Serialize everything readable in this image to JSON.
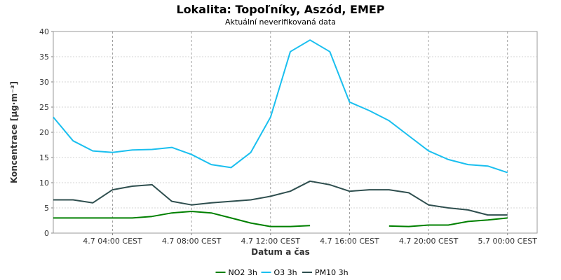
{
  "chart_data": {
    "type": "line",
    "title": "Lokalita: Topoľníky, Aszód, EMEP",
    "subtitle": "Aktuální neverifikovaná data",
    "xlabel": "Datum a čas",
    "ylabel": "Koncentrace [µg·m⁻³]",
    "ylim": [
      0,
      40
    ],
    "yticks": [
      0,
      5,
      10,
      15,
      20,
      25,
      30,
      35,
      40
    ],
    "xlim": [
      "4.7 01:00",
      "5.7 01:30"
    ],
    "xtick_labels": [
      "4.7 04:00 CEST",
      "4.7 08:00 CEST",
      "4.7 12:00 CEST",
      "4.7 16:00 CEST",
      "4.7 20:00 CEST",
      "5.7 00:00 CEST"
    ],
    "grid": true,
    "legend_position": "bottom",
    "x": [
      "4.7 01:00",
      "4.7 02:00",
      "4.7 03:00",
      "4.7 04:00",
      "4.7 05:00",
      "4.7 06:00",
      "4.7 07:00",
      "4.7 08:00",
      "4.7 09:00",
      "4.7 10:00",
      "4.7 11:00",
      "4.7 12:00",
      "4.7 13:00",
      "4.7 14:00",
      "4.7 15:00",
      "4.7 16:00",
      "4.7 17:00",
      "4.7 18:00",
      "4.7 19:00",
      "4.7 20:00",
      "4.7 21:00",
      "4.7 22:00",
      "4.7 23:00",
      "5.7 00:00"
    ],
    "series": [
      {
        "name": "NO2 3h",
        "color": "#008000",
        "values": [
          3.0,
          3.0,
          3.0,
          3.0,
          3.0,
          3.3,
          4.0,
          4.3,
          4.0,
          3.0,
          2.0,
          1.3,
          1.3,
          1.5,
          null,
          null,
          null,
          1.4,
          1.3,
          1.6,
          1.6,
          2.3,
          2.6,
          3.0
        ]
      },
      {
        "name": "O3 3h",
        "color": "#1ABFEF",
        "values": [
          23.0,
          18.3,
          16.3,
          16.0,
          16.5,
          16.6,
          17.0,
          15.6,
          13.6,
          13.0,
          16.0,
          23.0,
          36.0,
          38.3,
          36.0,
          26.0,
          24.3,
          22.3,
          19.3,
          16.3,
          14.6,
          13.6,
          13.3,
          12.0
        ]
      },
      {
        "name": "PM10 3h",
        "color": "#2F4F4F",
        "values": [
          6.6,
          6.6,
          6.0,
          8.6,
          9.3,
          9.6,
          6.3,
          5.6,
          6.0,
          6.3,
          6.6,
          7.3,
          8.3,
          10.3,
          9.6,
          8.3,
          8.6,
          8.6,
          8.0,
          5.6,
          5.0,
          4.6,
          3.6,
          3.6
        ]
      }
    ]
  }
}
